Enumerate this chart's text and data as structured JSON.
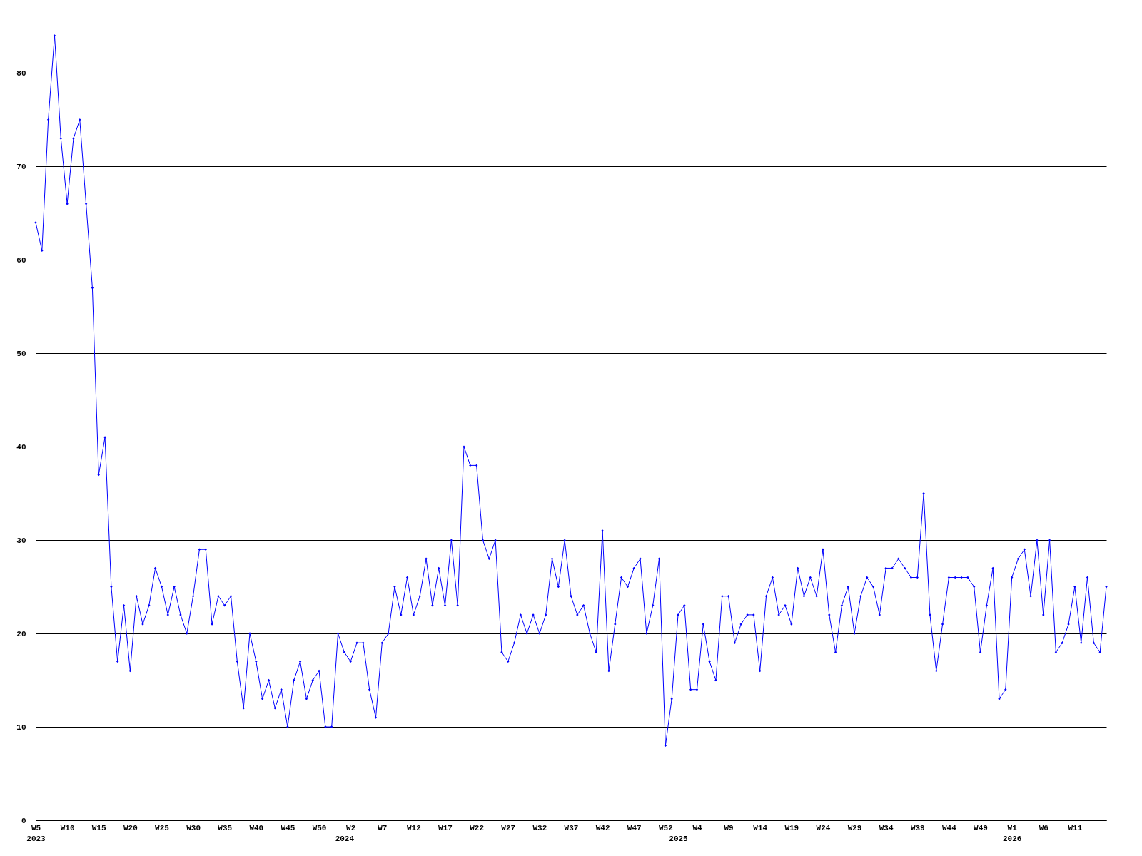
{
  "chart_data": {
    "type": "line",
    "categories": [
      "W5\n2023",
      null,
      null,
      null,
      null,
      "W10",
      null,
      null,
      null,
      null,
      "W15",
      null,
      null,
      null,
      null,
      "W20",
      null,
      null,
      null,
      null,
      "W25",
      null,
      null,
      null,
      null,
      "W30",
      null,
      null,
      null,
      null,
      "W35",
      null,
      null,
      null,
      null,
      "W40",
      null,
      null,
      null,
      null,
      "W45",
      null,
      null,
      null,
      null,
      "W50",
      null,
      null,
      null,
      "\n2024",
      "W2",
      null,
      null,
      null,
      null,
      "W7",
      null,
      null,
      null,
      null,
      "W12",
      null,
      null,
      null,
      null,
      "W17",
      null,
      null,
      null,
      null,
      "W22",
      null,
      null,
      null,
      null,
      "W27",
      null,
      null,
      null,
      null,
      "W32",
      null,
      null,
      null,
      null,
      "W37",
      null,
      null,
      null,
      null,
      "W42",
      null,
      null,
      null,
      null,
      "W47",
      null,
      null,
      null,
      null,
      "W52",
      null,
      "\n2025",
      null,
      null,
      "W4",
      null,
      null,
      null,
      null,
      "W9",
      null,
      null,
      null,
      null,
      "W14",
      null,
      null,
      null,
      null,
      "W19",
      null,
      null,
      null,
      null,
      "W24",
      null,
      null,
      null,
      null,
      "W29",
      null,
      null,
      null,
      null,
      "W34",
      null,
      null,
      null,
      null,
      "W39",
      null,
      null,
      null,
      null,
      "W44",
      null,
      null,
      null,
      null,
      "W49",
      null,
      null,
      null,
      null,
      "W1\n2026",
      null,
      null,
      null,
      null,
      "W6",
      null,
      null,
      null,
      null,
      "W11",
      null,
      null,
      null,
      null,
      null
    ],
    "series": [
      {
        "color": "#0000ff",
        "values": [
          64,
          61,
          75,
          84,
          73,
          66,
          73,
          75,
          66,
          57,
          37,
          41,
          25,
          17,
          23,
          16,
          24,
          21,
          23,
          27,
          25,
          22,
          25,
          22,
          20,
          24,
          29,
          29,
          21,
          24,
          23,
          24,
          17,
          12,
          20,
          17,
          13,
          15,
          12,
          14,
          10,
          15,
          17,
          13,
          15,
          16,
          10,
          10,
          20,
          18,
          17,
          19,
          19,
          14,
          11,
          19,
          20,
          25,
          22,
          26,
          22,
          24,
          28,
          23,
          27,
          23,
          30,
          23,
          40,
          38,
          38,
          30,
          28,
          30,
          18,
          17,
          19,
          22,
          20,
          22,
          20,
          22,
          28,
          25,
          30,
          24,
          22,
          23,
          20,
          18,
          31,
          16,
          21,
          26,
          25,
          27,
          28,
          20,
          23,
          28,
          8,
          13,
          22,
          23,
          14,
          14,
          21,
          17,
          15,
          24,
          24,
          19,
          21,
          22,
          22,
          16,
          24,
          26,
          22,
          23,
          21,
          27,
          24,
          26,
          24,
          29,
          22,
          18,
          23,
          25,
          20,
          24,
          26,
          25,
          22,
          27,
          27,
          28,
          27,
          26,
          26,
          35,
          22,
          16,
          21,
          26,
          26,
          26,
          26,
          25,
          18,
          23,
          27,
          13,
          14,
          26,
          28,
          29,
          24,
          30,
          22,
          30,
          18,
          19,
          21,
          25,
          19,
          26,
          19,
          18,
          25
        ]
      }
    ],
    "ylim": [
      0,
      84
    ],
    "yticks": [
      0,
      10,
      20,
      30,
      40,
      50,
      60,
      70,
      80
    ],
    "grid": "y",
    "marker": "diamond",
    "line_style": "solid"
  }
}
